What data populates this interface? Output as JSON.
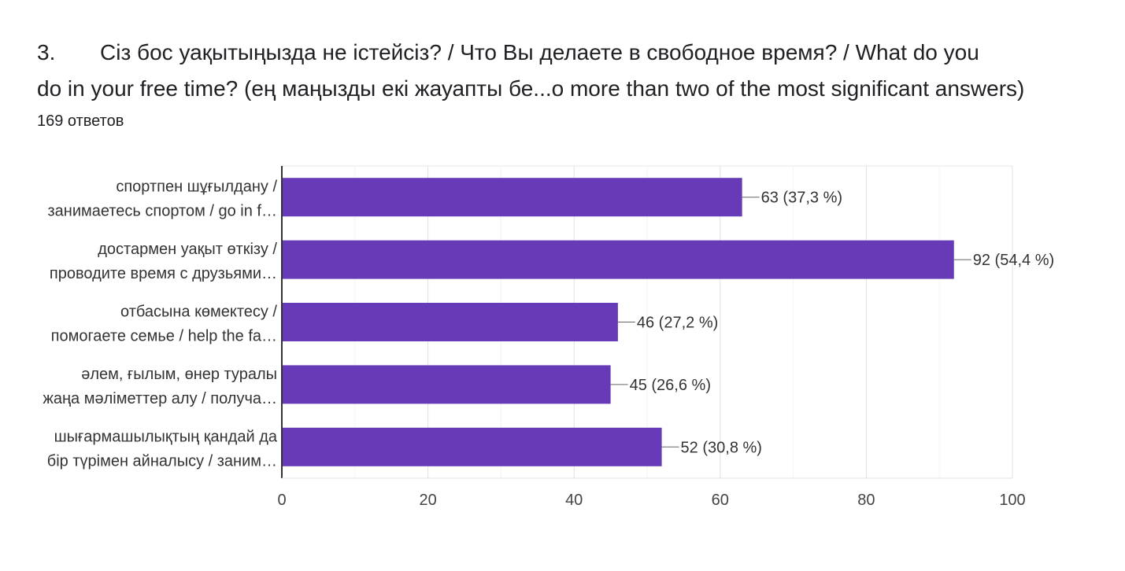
{
  "question": {
    "number": "3.",
    "text_line1": "Сіз бос уақытыңызда не істейсіз? / Что Вы делаете в свободное время? / What do you",
    "text_line2": "do in your free time?  (ең маңызды екі жауапты бе...o more than two of the most significant answers)"
  },
  "responses_count": "169 ответов",
  "chart_data": {
    "type": "bar",
    "orientation": "horizontal",
    "categories": [
      [
        "спортпен шұғылдану /",
        "занимаетесь спортом / go in f…"
      ],
      [
        "достармен уақыт өткізу /",
        "проводите время с друзьями…"
      ],
      [
        "отбасына көмектесу /",
        "помогаете семье / help the fa…"
      ],
      [
        "әлем, ғылым, өнер туралы",
        "жаңа мәліметтер алу / получа…"
      ],
      [
        "шығармашылықтың қандай да",
        "бір түрімен айналысу / заним…"
      ]
    ],
    "values": [
      63,
      92,
      46,
      45,
      52
    ],
    "data_labels": [
      "63 (37,3 %)",
      "92 (54,4 %)",
      "46 (27,2 %)",
      "45 (26,6 %)",
      "52 (30,8 %)"
    ],
    "xlim": [
      0,
      100
    ],
    "xticks": [
      0,
      20,
      40,
      60,
      80,
      100
    ],
    "grid": true,
    "bar_color": "#673ab7"
  }
}
